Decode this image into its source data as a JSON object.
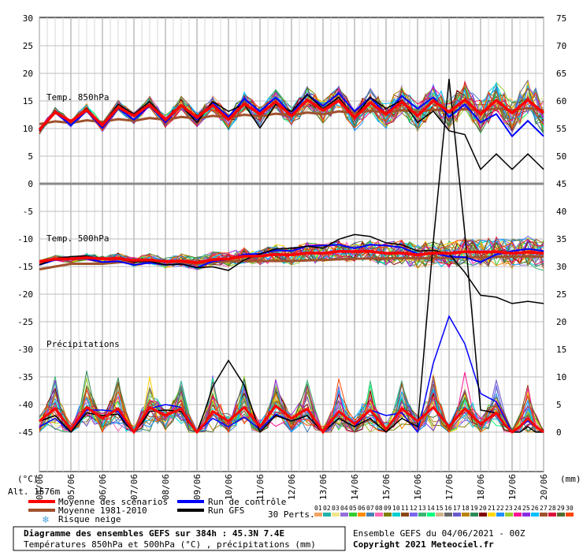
{
  "chart_data": {
    "type": "line",
    "x_labels": [
      "05/06",
      "06/06",
      "07/06",
      "08/06",
      "09/06",
      "10/06",
      "11/06",
      "12/06",
      "13/06",
      "14/06",
      "15/06",
      "16/06",
      "17/06",
      "18/06",
      "19/06",
      "20/06"
    ],
    "x_first_label": "04/06",
    "left_axis": {
      "label": "(°C)",
      "ticks": [
        30,
        25,
        20,
        15,
        10,
        5,
        0,
        -5,
        -10,
        -15,
        -20,
        -25,
        -30,
        -35,
        -40,
        -45
      ],
      "range": [
        -45,
        30
      ]
    },
    "right_axis": {
      "label": "(mm)",
      "ticks": [
        75,
        70,
        65,
        60,
        55,
        50,
        45,
        40,
        35,
        30,
        25,
        20,
        15,
        10,
        5,
        0
      ],
      "range": [
        0,
        75
      ]
    },
    "panels": {
      "t850": {
        "label": "Temp. 850hPa"
      },
      "t500": {
        "label": "Temp. 500hPa"
      },
      "precip": {
        "label": "Précipitations"
      }
    },
    "series": [
      {
        "name": "Moyenne des scénarios",
        "color": "#ff0000",
        "key": "mean"
      },
      {
        "name": "Moyenne 1981-2010",
        "color": "#a0522d",
        "key": "clim"
      },
      {
        "name": "Run de contrôle",
        "color": "#0000ff",
        "key": "control"
      },
      {
        "name": "Run GFS",
        "color": "#000000",
        "key": "gfs"
      }
    ],
    "t850": {
      "clim": [
        11.0,
        11.2,
        11.4,
        11.6,
        11.8,
        12.0,
        12.2,
        12.4,
        12.6,
        12.8,
        13.0,
        13.1,
        13.2,
        13.3,
        13.4,
        13.5
      ],
      "mean": [
        11.0,
        12.5,
        11.8,
        13.5,
        12.8,
        13.2,
        12.8,
        13.8,
        13.5,
        14.5,
        13.2,
        13.8,
        13.5,
        14.2,
        13.8,
        14.0
      ],
      "control": [
        11.0,
        12.0,
        11.5,
        13.0,
        12.5,
        13.0,
        13.5,
        14.5,
        14.0,
        15.5,
        14.5,
        14.0,
        15.0,
        13.5,
        12.5,
        10.0
      ],
      "gfs": [
        11.0,
        12.5,
        12.0,
        14.0,
        13.0,
        12.5,
        14.5,
        11.5,
        14.5,
        15.0,
        13.5,
        15.0,
        12.5,
        11.0,
        4.0,
        4.0
      ]
    },
    "t500": {
      "clim": [
        -15.5,
        -14.5,
        -14.5,
        -14.0,
        -14.0,
        -14.5,
        -14.0,
        -14.0,
        -14.0,
        -13.8,
        -13.6,
        -13.5,
        -13.5,
        -13.4,
        -13.3,
        -13.2
      ],
      "mean": [
        -14.0,
        -13.5,
        -13.5,
        -13.8,
        -14.0,
        -14.2,
        -13.5,
        -13.0,
        -12.8,
        -12.5,
        -12.2,
        -12.5,
        -12.8,
        -12.5,
        -12.3,
        -12.5
      ],
      "control": [
        -14.5,
        -13.5,
        -14.0,
        -14.5,
        -14.5,
        -15.0,
        -13.5,
        -12.5,
        -12.0,
        -11.0,
        -11.5,
        -11.0,
        -12.5,
        -13.0,
        -14.0,
        -12.0
      ],
      "gfs": [
        -14.5,
        -13.0,
        -13.5,
        -14.0,
        -14.5,
        -15.0,
        -15.5,
        -12.5,
        -11.5,
        -11.5,
        -9.0,
        -10.5,
        -12.0,
        -12.5,
        -20.0,
        -21.5
      ]
    },
    "precip": {
      "mean": [
        3.5,
        2.0,
        4.0,
        1.5,
        4.5,
        1.0,
        3.5,
        2.5,
        4.0,
        1.5,
        3.0,
        2.0,
        3.5,
        2.5,
        3.0,
        1.0
      ],
      "clim": [
        3.0,
        2.8,
        3.0,
        2.5,
        3.0,
        2.6,
        2.8,
        2.5,
        2.6,
        2.4,
        2.4,
        2.2,
        2.2,
        2.0,
        2.0,
        1.8
      ],
      "control": [
        2.0,
        1.0,
        5.0,
        0.5,
        6.0,
        1.0,
        2.0,
        1.5,
        3.0,
        1.0,
        2.0,
        4.0,
        1.0,
        22.0,
        8.0,
        1.0
      ],
      "gfs": [
        3.0,
        1.0,
        4.0,
        0.5,
        5.0,
        0.5,
        14.0,
        1.0,
        3.0,
        1.0,
        2.0,
        1.0,
        2.0,
        65.0,
        5.0,
        0.0
      ]
    },
    "annotations": {
      "altitude": "Alt. 1576m",
      "snow_risk": "Risque neige",
      "perts_label": "30 Perts.",
      "perts": [
        "01",
        "02",
        "03",
        "04",
        "05",
        "06",
        "07",
        "08",
        "09",
        "10",
        "11",
        "12",
        "13",
        "14",
        "15",
        "16",
        "17",
        "18",
        "19",
        "20",
        "21",
        "22",
        "23",
        "24",
        "25",
        "26",
        "27",
        "28",
        "29",
        "30"
      ],
      "pert_colors": [
        "#f4a460",
        "#20b2aa",
        "#f0e68c",
        "#9370db",
        "#32cd32",
        "#ff8c00",
        "#4682b4",
        "#ff69b4",
        "#808000",
        "#00ced1",
        "#8b4513",
        "#7b68ee",
        "#3cb371",
        "#00ff7f",
        "#d2b48c",
        "#696969",
        "#6a5acd",
        "#b8860b",
        "#2e8b57",
        "#800000",
        "#ffd700",
        "#1e90ff",
        "#9acd32",
        "#ff1493",
        "#8a2be2",
        "#00bfff",
        "#a0522d",
        "#dc143c",
        "#556b2f",
        "#ff4500"
      ]
    },
    "title": "Diagramme des ensembles GEFS sur 384h : 45.3N 7.4E",
    "subtitle": "Températures 850hPa et 500hPa (°C) , précipitations (mm)",
    "run_info": "Ensemble GEFS du 04/06/2021 - 00Z",
    "copyright": "Copyright 2021 Meteociel.fr"
  }
}
